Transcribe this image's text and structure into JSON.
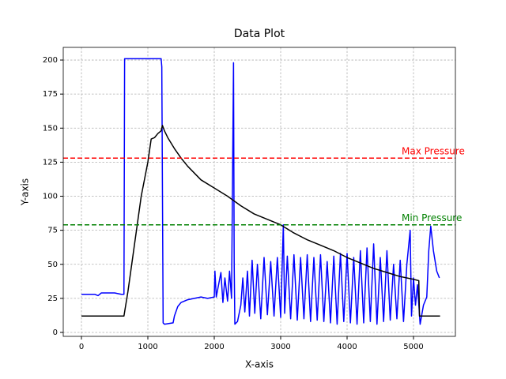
{
  "chart_data": {
    "type": "line",
    "title": "Data Plot",
    "x_label": "X-axis",
    "y_label": "Y-axis",
    "xlim": [
      -274,
      5631
    ],
    "ylim": [
      -2.9,
      209.3
    ],
    "xticks": [
      0,
      1000,
      2000,
      3000,
      4000,
      5000
    ],
    "yticks": [
      0,
      25,
      50,
      75,
      100,
      125,
      150,
      175,
      200
    ],
    "grid": true,
    "series": [
      {
        "color": "#0000ff",
        "x": [
          0,
          200,
          250,
          300,
          400,
          500,
          600,
          640,
          650,
          700,
          1000,
          1200,
          1210,
          1230,
          1250,
          1380,
          1400,
          1450,
          1500,
          1600,
          1700,
          1800,
          1900,
          2000,
          2010,
          2030,
          2100,
          2130,
          2160,
          2200,
          2230,
          2260,
          2290,
          2300,
          2310,
          2350,
          2400,
          2430,
          2460,
          2500,
          2530,
          2570,
          2610,
          2650,
          2700,
          2750,
          2800,
          2850,
          2900,
          2950,
          3000,
          3040,
          3060,
          3100,
          3150,
          3200,
          3250,
          3300,
          3350,
          3400,
          3450,
          3500,
          3550,
          3600,
          3650,
          3700,
          3750,
          3800,
          3850,
          3900,
          3950,
          4000,
          4050,
          4100,
          4150,
          4200,
          4250,
          4300,
          4350,
          4400,
          4450,
          4500,
          4550,
          4600,
          4650,
          4700,
          4750,
          4800,
          4850,
          4900,
          4950,
          4970,
          5000,
          5030,
          5060,
          5100,
          5150,
          5200,
          5230,
          5260,
          5300,
          5350,
          5390
        ],
        "values": [
          28,
          28,
          27,
          29,
          29,
          29,
          28,
          28,
          201,
          201,
          201,
          201,
          195,
          7,
          6,
          7,
          12,
          19,
          22,
          24,
          25,
          26,
          25,
          26,
          45,
          26,
          44,
          22,
          40,
          23,
          45,
          25,
          198,
          50,
          6,
          8,
          20,
          40,
          15,
          45,
          12,
          53,
          14,
          50,
          10,
          55,
          13,
          52,
          12,
          55,
          11,
          79,
          14,
          56,
          10,
          57,
          9,
          55,
          10,
          57,
          8,
          55,
          9,
          57,
          8,
          52,
          7,
          56,
          6,
          58,
          8,
          58,
          7,
          55,
          6,
          60,
          7,
          62,
          8,
          65,
          6,
          55,
          8,
          60,
          9,
          50,
          10,
          53,
          8,
          50,
          75,
          12,
          40,
          20,
          35,
          6,
          20,
          26,
          60,
          78,
          60,
          45,
          40
        ]
      },
      {
        "color": "#000000",
        "x": [
          0,
          640,
          700,
          800,
          900,
          1000,
          1050,
          1100,
          1150,
          1200,
          1220,
          1250,
          1300,
          1400,
          1500,
          1600,
          1800,
          2000,
          2200,
          2400,
          2600,
          2800,
          3000,
          3200,
          3400,
          3600,
          3800,
          4000,
          4200,
          4400,
          4600,
          4800,
          5000,
          5080,
          5090,
          5400
        ],
        "values": [
          12,
          12,
          30,
          65,
          100,
          125,
          142,
          143,
          146,
          148,
          152,
          148,
          143,
          135,
          128,
          122,
          112,
          106,
          100,
          93,
          87,
          83,
          79,
          73,
          68,
          64,
          60,
          55,
          51,
          47,
          44,
          41,
          39,
          38,
          12,
          12
        ]
      }
    ],
    "reference_lines": [
      {
        "label": "Max Pressure",
        "value": 128,
        "color": "#ff0000"
      },
      {
        "label": "Min Pressure",
        "value": 79,
        "color": "#008000"
      }
    ]
  }
}
